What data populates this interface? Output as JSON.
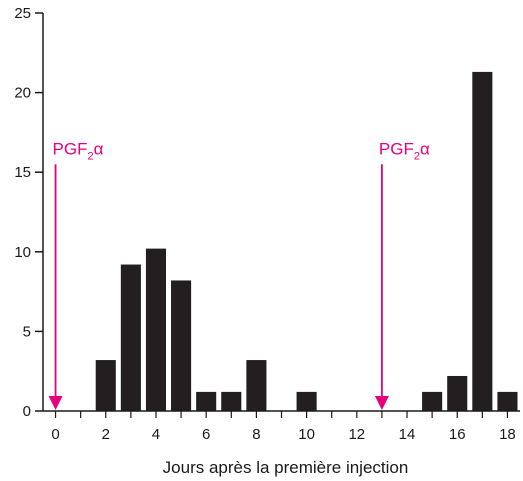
{
  "chart_data": {
    "type": "bar",
    "title": "",
    "xlabel": "Jours après la première injection",
    "ylabel": "",
    "xlim": [
      -0.5,
      18.5
    ],
    "ylim": [
      0,
      25
    ],
    "x_ticks": [
      0,
      2,
      4,
      6,
      8,
      10,
      12,
      14,
      16,
      18
    ],
    "y_ticks": [
      0,
      5,
      10,
      15,
      20,
      25
    ],
    "x": [
      2,
      3,
      4,
      5,
      6,
      7,
      8,
      10,
      15,
      16,
      17,
      18
    ],
    "values": [
      3.2,
      9.2,
      10.2,
      8.2,
      1.2,
      1.2,
      3.2,
      1.2,
      1.2,
      2.2,
      21.3,
      1.2
    ],
    "bar_color": "#231f20",
    "grid": false,
    "annotations": [
      {
        "label": "PGF",
        "subscript": "2",
        "suffix": "α",
        "x": 0,
        "y_top": 16,
        "color": "#e6007e"
      },
      {
        "label": "PGF",
        "subscript": "2",
        "suffix": "α",
        "x": 13,
        "y_top": 16,
        "color": "#e6007e"
      }
    ]
  }
}
